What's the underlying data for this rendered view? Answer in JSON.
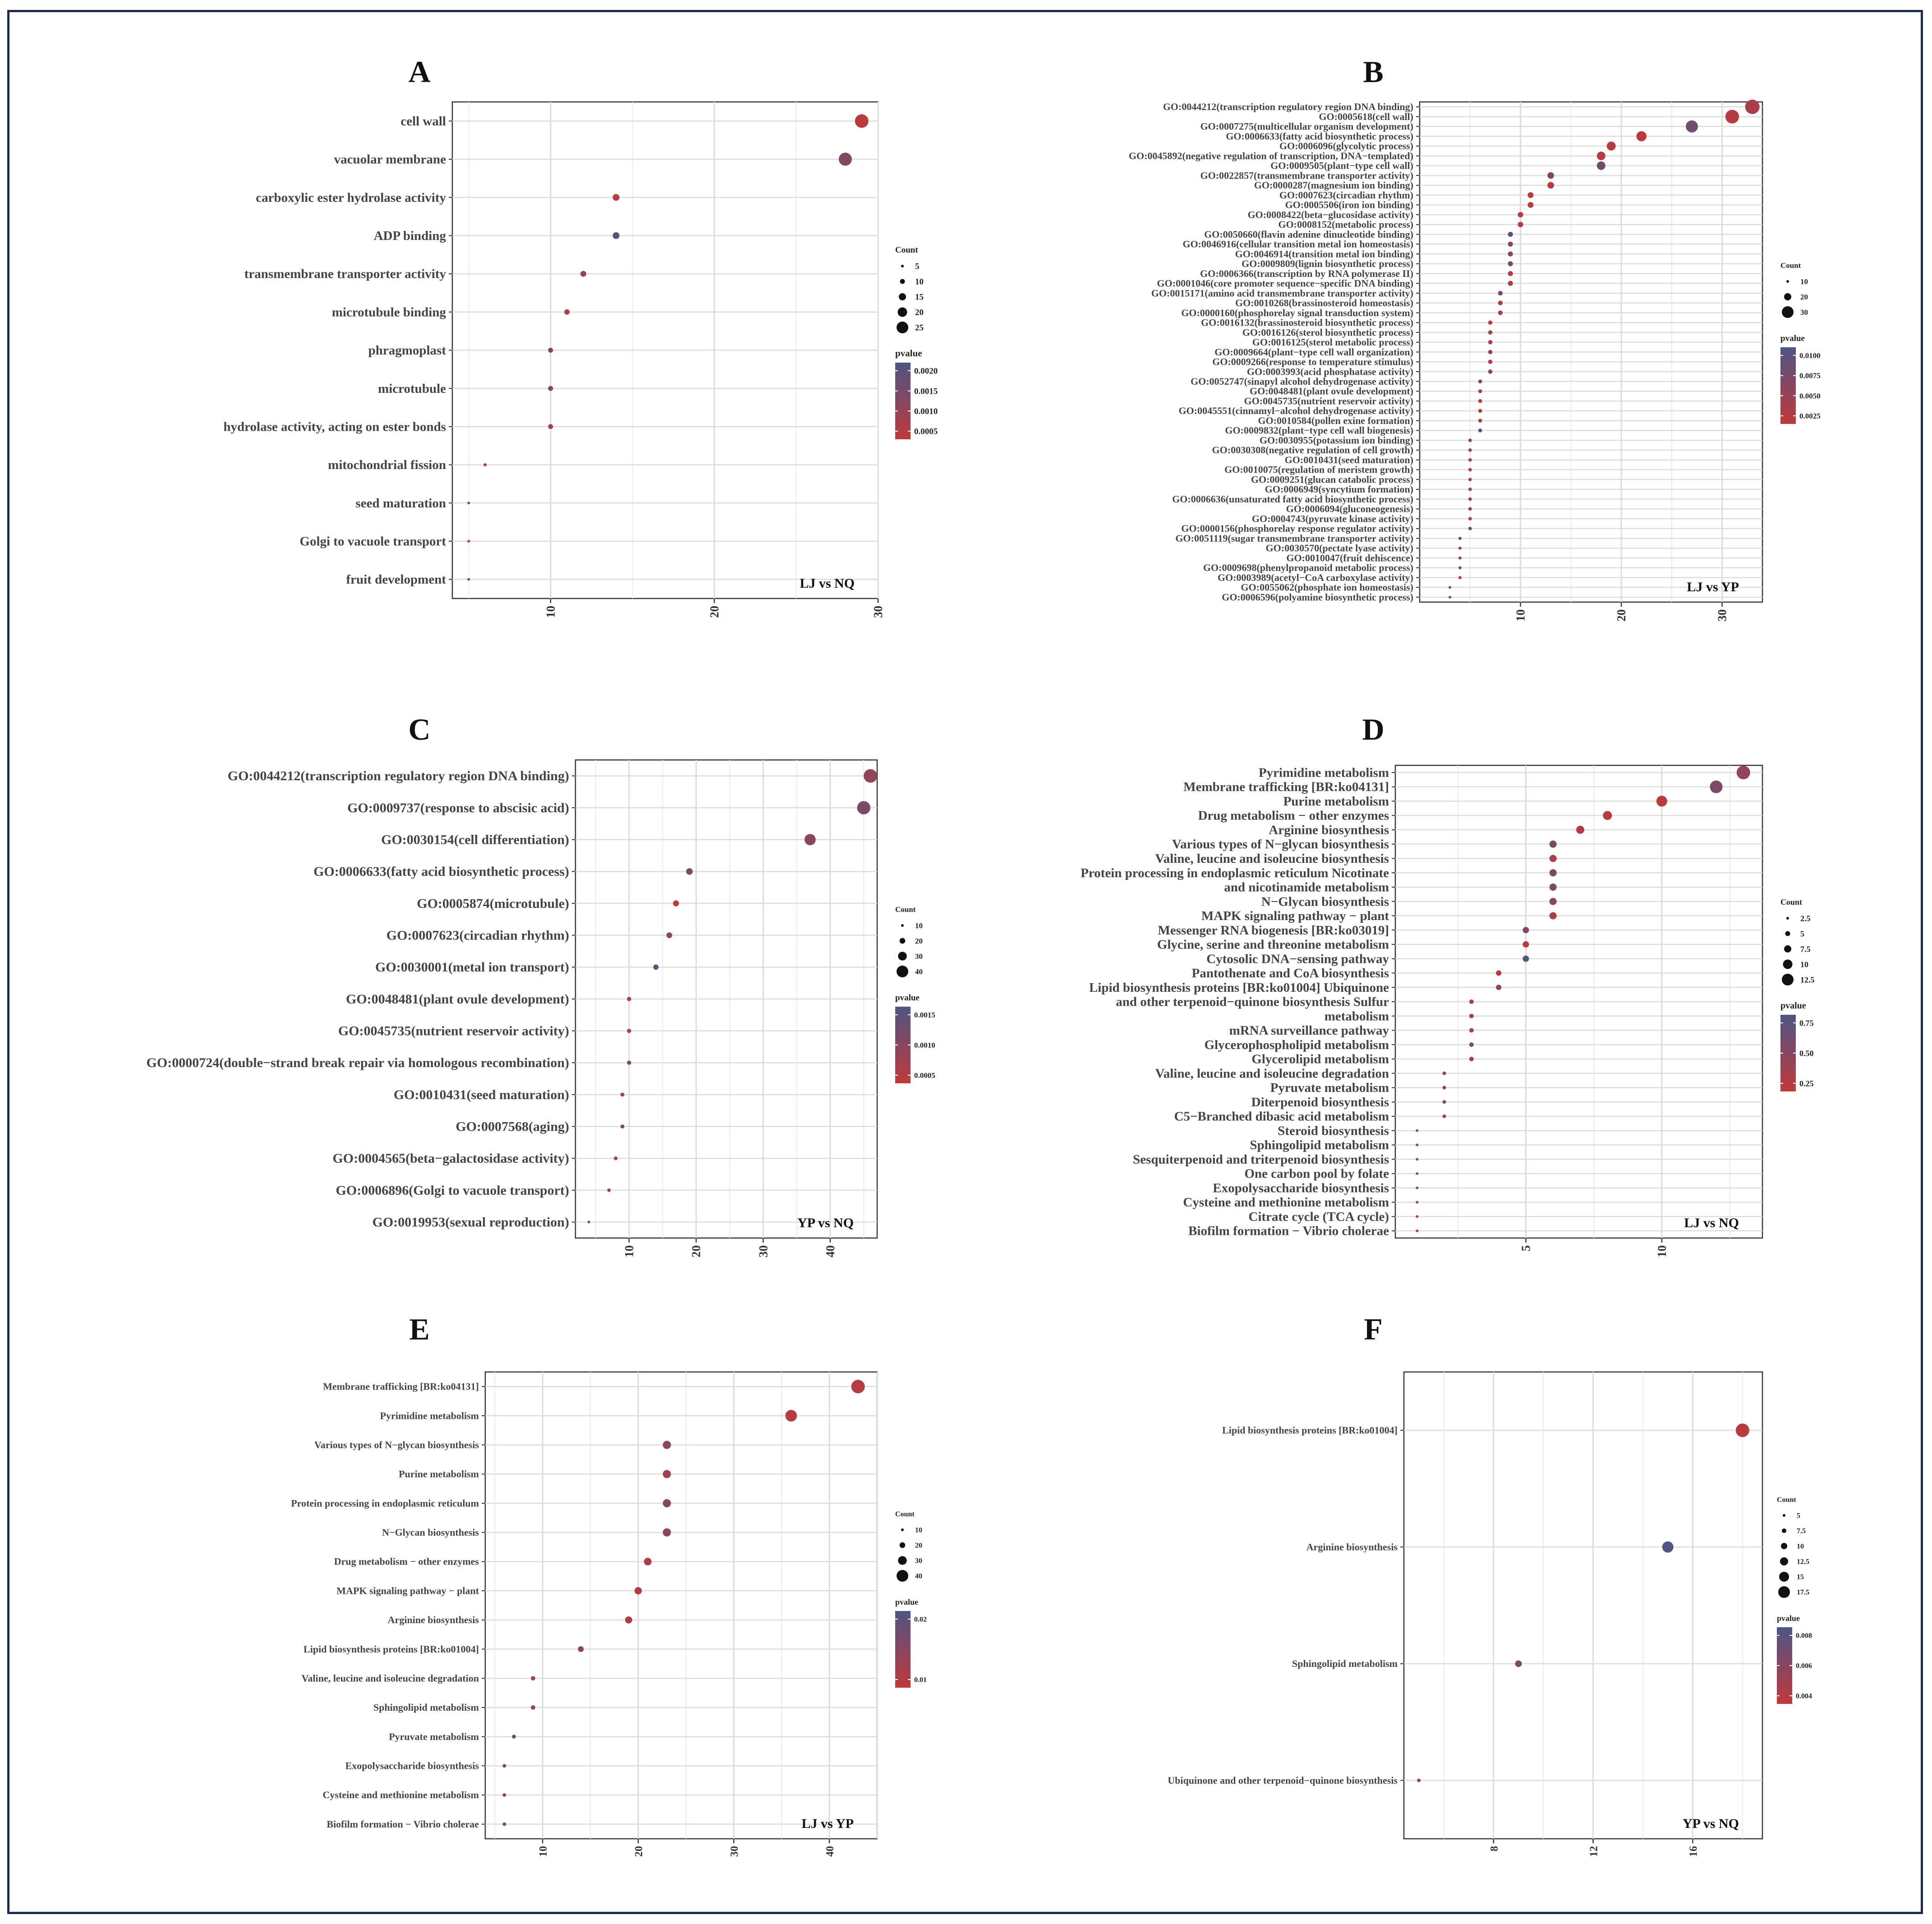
{
  "panels": [
    {
      "letter": "A",
      "chart_data": {
        "type": "scatter",
        "title": "",
        "xlabel": "",
        "ylabel": "",
        "annotation": "LJ vs NQ",
        "xlim": [
          4,
          30
        ],
        "xticks": [
          10,
          20,
          30
        ],
        "grid": true,
        "legend_placement": "right",
        "size_legend_title": "Count",
        "size_legend": [
          5,
          10,
          15,
          20,
          25
        ],
        "color_legend_title": "pvalue",
        "color_ticks": [
          "0.0020",
          "0.0015",
          "0.0010",
          "0.0005"
        ],
        "colors": {
          "low": "#c0393b",
          "high": "#4e5585"
        },
        "categories": [
          "cell wall",
          "vacuolar membrane",
          "carboxylic ester hydrolase activity",
          "ADP binding",
          "transmembrane transporter activity",
          "microtubule binding",
          "phragmoplast",
          "microtubule",
          "hydrolase activity, acting on ester bonds",
          "mitochondrial fission",
          "seed maturation",
          "Golgi to vacuole transport",
          "fruit development"
        ],
        "x": [
          29,
          28,
          14,
          14,
          12,
          11,
          10,
          10,
          10,
          6,
          5,
          5,
          5
        ],
        "color_level": [
          0.05,
          0.55,
          0.1,
          0.95,
          0.4,
          0.2,
          0.55,
          0.4,
          0.3,
          0.1,
          0.5,
          0.2,
          0.7
        ]
      }
    },
    {
      "letter": "B",
      "chart_data": {
        "type": "scatter",
        "title": "",
        "xlabel": "",
        "ylabel": "",
        "annotation": "LJ vs YP",
        "xlim": [
          0,
          34
        ],
        "xticks": [
          10,
          20,
          30
        ],
        "grid": true,
        "legend_placement": "right",
        "size_legend_title": "Count",
        "size_legend": [
          10,
          20,
          30
        ],
        "color_legend_title": "pvalue",
        "color_ticks": [
          "0.0100",
          "0.0075",
          "0.0050",
          "0.0025"
        ],
        "colors": {
          "low": "#c0393b",
          "high": "#4e5585"
        },
        "categories": [
          "GO:0044212(transcription regulatory region DNA binding)",
          "GO:0005618(cell wall)",
          "GO:0007275(multicellular organism development)",
          "GO:0006633(fatty acid biosynthetic process)",
          "GO:0006096(glycolytic process)",
          "GO:0045892(negative regulation of transcription, DNA−templated)",
          "GO:0009505(plant−type cell wall)",
          "GO:0022857(transmembrane transporter activity)",
          "GO:0000287(magnesium ion binding)",
          "GO:0007623(circadian rhythm)",
          "GO:0005506(iron ion binding)",
          "GO:0008422(beta−glucosidase activity)",
          "GO:0008152(metabolic process)",
          "GO:0050660(flavin adenine dinucleotide binding)",
          "GO:0046916(cellular transition metal ion homeostasis)",
          "GO:0046914(transition metal ion binding)",
          "GO:0009809(lignin biosynthetic process)",
          "GO:0006366(transcription by RNA polymerase II)",
          "GO:0001046(core promoter sequence−specific DNA binding)",
          "GO:0015171(amino acid transmembrane transporter activity)",
          "GO:0010268(brassinosteroid homeostasis)",
          "GO:0000160(phosphorelay signal transduction system)",
          "GO:0016132(brassinosteroid biosynthetic process)",
          "GO:0016126(sterol biosynthetic process)",
          "GO:0016125(sterol metabolic process)",
          "GO:0009664(plant−type cell wall organization)",
          "GO:0009266(response to temperature stimulus)",
          "GO:0003993(acid phosphatase activity)",
          "GO:0052747(sinapyl alcohol dehydrogenase activity)",
          "GO:0048481(plant ovule development)",
          "GO:0045735(nutrient reservoir activity)",
          "GO:0045551(cinnamyl−alcohol dehydrogenase activity)",
          "GO:0010584(pollen exine formation)",
          "GO:0009832(plant−type cell wall biogenesis)",
          "GO:0030955(potassium ion binding)",
          "GO:0030308(negative regulation of cell growth)",
          "GO:0010431(seed maturation)",
          "GO:0010075(regulation of meristem growth)",
          "GO:0009251(glucan catabolic process)",
          "GO:0006949(syncytium formation)",
          "GO:0006636(unsaturated fatty acid biosynthetic process)",
          "GO:0006094(gluconeogenesis)",
          "GO:0004743(pyruvate kinase activity)",
          "GO:0000156(phosphorelay response regulator activity)",
          "GO:0051119(sugar transmembrane transporter activity)",
          "GO:0030570(pectate lyase activity)",
          "GO:0010047(fruit dehiscence)",
          "GO:0009698(phenylpropanoid metabolic process)",
          "GO:0003989(acetyl−CoA carboxylase activity)",
          "GO:0055062(phosphate ion homeostasis)",
          "GO:0006596(polyamine biosynthetic process)"
        ],
        "x": [
          33,
          31,
          27,
          22,
          19,
          18,
          18,
          13,
          13,
          11,
          11,
          10,
          10,
          9,
          9,
          9,
          9,
          9,
          9,
          8,
          8,
          8,
          7,
          7,
          7,
          7,
          7,
          7,
          6,
          6,
          6,
          6,
          6,
          6,
          5,
          5,
          5,
          5,
          5,
          5,
          5,
          5,
          5,
          5,
          4,
          4,
          4,
          4,
          4,
          3,
          3
        ],
        "color_level": [
          0.2,
          0.1,
          0.7,
          0.05,
          0.1,
          0.1,
          0.7,
          0.6,
          0.1,
          0.1,
          0.1,
          0.1,
          0.1,
          0.9,
          0.5,
          0.5,
          0.6,
          0.1,
          0.2,
          0.7,
          0.2,
          0.2,
          0.1,
          0.3,
          0.3,
          0.5,
          0.2,
          0.6,
          0.6,
          0.4,
          0.1,
          0.2,
          0.2,
          0.8,
          0.5,
          0.5,
          0.2,
          0.3,
          0.3,
          0.3,
          0.3,
          0.4,
          0.2,
          0.8,
          0.9,
          0.5,
          0.3,
          0.6,
          0.1,
          0.9,
          0.9
        ]
      }
    },
    {
      "letter": "C",
      "chart_data": {
        "type": "scatter",
        "title": "",
        "xlabel": "",
        "ylabel": "",
        "annotation": "YP vs NQ",
        "xlim": [
          2,
          47
        ],
        "xticks": [
          10,
          20,
          30,
          40
        ],
        "grid": true,
        "legend_placement": "right",
        "size_legend_title": "Count",
        "size_legend": [
          10,
          20,
          30,
          40
        ],
        "color_legend_title": "pvalue",
        "color_ticks": [
          "0.0015",
          "0.0010",
          "0.0005"
        ],
        "colors": {
          "low": "#c0393b",
          "high": "#4e5585"
        },
        "categories": [
          "GO:0044212(transcription regulatory region DNA binding)",
          "GO:0009737(response to abscisic acid)",
          "GO:0030154(cell differentiation)",
          "GO:0006633(fatty acid biosynthetic process)",
          "GO:0005874(microtubule)",
          "GO:0007623(circadian rhythm)",
          "GO:0030001(metal ion transport)",
          "GO:0048481(plant ovule development)",
          "GO:0045735(nutrient reservoir activity)",
          "GO:0000724(double−strand break repair via homologous recombination)",
          "GO:0010431(seed maturation)",
          "GO:0007568(aging)",
          "GO:0004565(beta−galactosidase activity)",
          "GO:0006896(Golgi to vacuole transport)",
          "GO:0019953(sexual reproduction)"
        ],
        "x": [
          46,
          45,
          37,
          19,
          17,
          16,
          14,
          10,
          10,
          10,
          9,
          9,
          8,
          7,
          4
        ],
        "color_level": [
          0.4,
          0.6,
          0.5,
          0.6,
          0.1,
          0.5,
          0.95,
          0.15,
          0.15,
          0.6,
          0.2,
          0.6,
          0.2,
          0.3,
          0.3
        ]
      }
    },
    {
      "letter": "D",
      "chart_data": {
        "type": "scatter",
        "title": "",
        "xlabel": "",
        "ylabel": "",
        "annotation": "LJ vs NQ",
        "xlim": [
          0.2,
          13.7
        ],
        "xticks": [
          5,
          10
        ],
        "grid": true,
        "legend_placement": "right",
        "size_legend_title": "Count",
        "size_legend": [
          2.5,
          5.0,
          7.5,
          10.0,
          12.5
        ],
        "color_legend_title": "pvalue",
        "color_ticks": [
          "0.75",
          "0.50",
          "0.25"
        ],
        "colors": {
          "low": "#c0393b",
          "high": "#4e5585"
        },
        "categories": [
          "Pyrimidine metabolism",
          "Membrane trafficking [BR:ko04131]",
          "Purine metabolism",
          "Drug metabolism − other enzymes",
          "Arginine biosynthesis",
          "Various types of N−glycan biosynthesis",
          "Valine, leucine and isoleucine biosynthesis",
          "Protein processing in endoplasmic reticulum Nicotinate",
          "and nicotinamide metabolism",
          "N−Glycan biosynthesis",
          "MAPK signaling pathway − plant",
          "Messenger RNA biogenesis [BR:ko03019]",
          "Glycine, serine and threonine metabolism",
          "Cytosolic DNA−sensing pathway",
          "Pantothenate and CoA biosynthesis",
          "Lipid biosynthesis proteins [BR:ko01004] Ubiquinone",
          "and other terpenoid−quinone biosynthesis Sulfur",
          "metabolism",
          "mRNA surveillance pathway",
          "Glycerophospholipid metabolism",
          "Glycerolipid metabolism",
          "Valine, leucine and isoleucine degradation",
          "Pyruvate metabolism",
          "Diterpenoid biosynthesis",
          "C5−Branched dibasic acid metabolism",
          "Steroid biosynthesis",
          "Sphingolipid metabolism",
          "Sesquiterpenoid and triterpenoid biosynthesis",
          "One carbon pool by folate",
          "Exopolysaccharide biosynthesis",
          "Cysteine and methionine metabolism",
          "Citrate cycle (TCA cycle)",
          "Biofilm formation − Vibrio cholerae"
        ],
        "x": [
          13,
          12,
          10,
          8,
          7,
          6,
          6,
          6,
          6,
          6,
          6,
          5,
          5,
          5,
          4,
          4,
          3,
          3,
          3,
          3,
          3,
          2,
          2,
          2,
          2,
          1,
          1,
          1,
          1,
          1,
          1,
          1,
          1
        ],
        "color_level": [
          0.4,
          0.6,
          0.05,
          0.1,
          0.1,
          0.6,
          0.2,
          0.6,
          0.6,
          0.5,
          0.2,
          0.5,
          0.1,
          0.95,
          0.1,
          0.4,
          0.2,
          0.3,
          0.2,
          0.5,
          0.3,
          0.5,
          0.5,
          0.6,
          0.4,
          0.3,
          0.3,
          0.3,
          0.3,
          0.3,
          0.3,
          0.3,
          0.3
        ]
      }
    },
    {
      "letter": "E",
      "chart_data": {
        "type": "scatter",
        "title": "",
        "xlabel": "",
        "ylabel": "",
        "annotation": "LJ vs YP",
        "xlim": [
          4,
          45
        ],
        "xticks": [
          10,
          20,
          30,
          40
        ],
        "grid": true,
        "legend_placement": "right",
        "size_legend_title": "Count",
        "size_legend": [
          10,
          20,
          30,
          40
        ],
        "color_legend_title": "pvalue",
        "color_ticks": [
          "0.02",
          "0.01"
        ],
        "colors": {
          "low": "#c0393b",
          "high": "#4e5585"
        },
        "categories": [
          "Membrane trafficking [BR:ko04131]",
          "Pyrimidine metabolism",
          "Various types of N−glycan biosynthesis",
          "Purine metabolism",
          "Protein processing in endoplasmic reticulum",
          "N−Glycan biosynthesis",
          "Drug metabolism − other enzymes",
          "MAPK signaling pathway − plant",
          "Arginine biosynthesis",
          "Lipid biosynthesis proteins [BR:ko01004]",
          "Valine, leucine and isoleucine degradation",
          "Sphingolipid metabolism",
          "Pyruvate metabolism",
          "Exopolysaccharide biosynthesis",
          "Cysteine and methionine metabolism",
          "Biofilm formation − Vibrio cholerae"
        ],
        "x": [
          43,
          36,
          23,
          23,
          23,
          23,
          21,
          20,
          19,
          14,
          9,
          9,
          7,
          6,
          6,
          6
        ],
        "color_level": [
          0.1,
          0.1,
          0.5,
          0.3,
          0.5,
          0.5,
          0.15,
          0.15,
          0.15,
          0.4,
          0.3,
          0.3,
          0.95,
          0.5,
          0.5,
          0.5
        ]
      }
    },
    {
      "letter": "F",
      "chart_data": {
        "type": "scatter",
        "title": "",
        "xlabel": "",
        "ylabel": "",
        "annotation": "YP vs NQ",
        "xlim": [
          4.4,
          18.8
        ],
        "xticks": [
          8,
          12,
          16
        ],
        "grid": true,
        "legend_placement": "right",
        "size_legend_title": "Count",
        "size_legend": [
          5.0,
          7.5,
          10.0,
          12.5,
          15.0,
          17.5
        ],
        "color_legend_title": "pvalue",
        "color_ticks": [
          "0.008",
          "0.006",
          "0.004"
        ],
        "colors": {
          "low": "#c0393b",
          "high": "#4e5585"
        },
        "categories": [
          "Lipid biosynthesis proteins [BR:ko01004]",
          "Arginine biosynthesis",
          "Sphingolipid metabolism",
          "Ubiquinone and other terpenoid−quinone biosynthesis"
        ],
        "x": [
          18,
          15,
          9,
          5
        ],
        "color_level": [
          0.05,
          0.95,
          0.6,
          0.3
        ]
      }
    }
  ]
}
